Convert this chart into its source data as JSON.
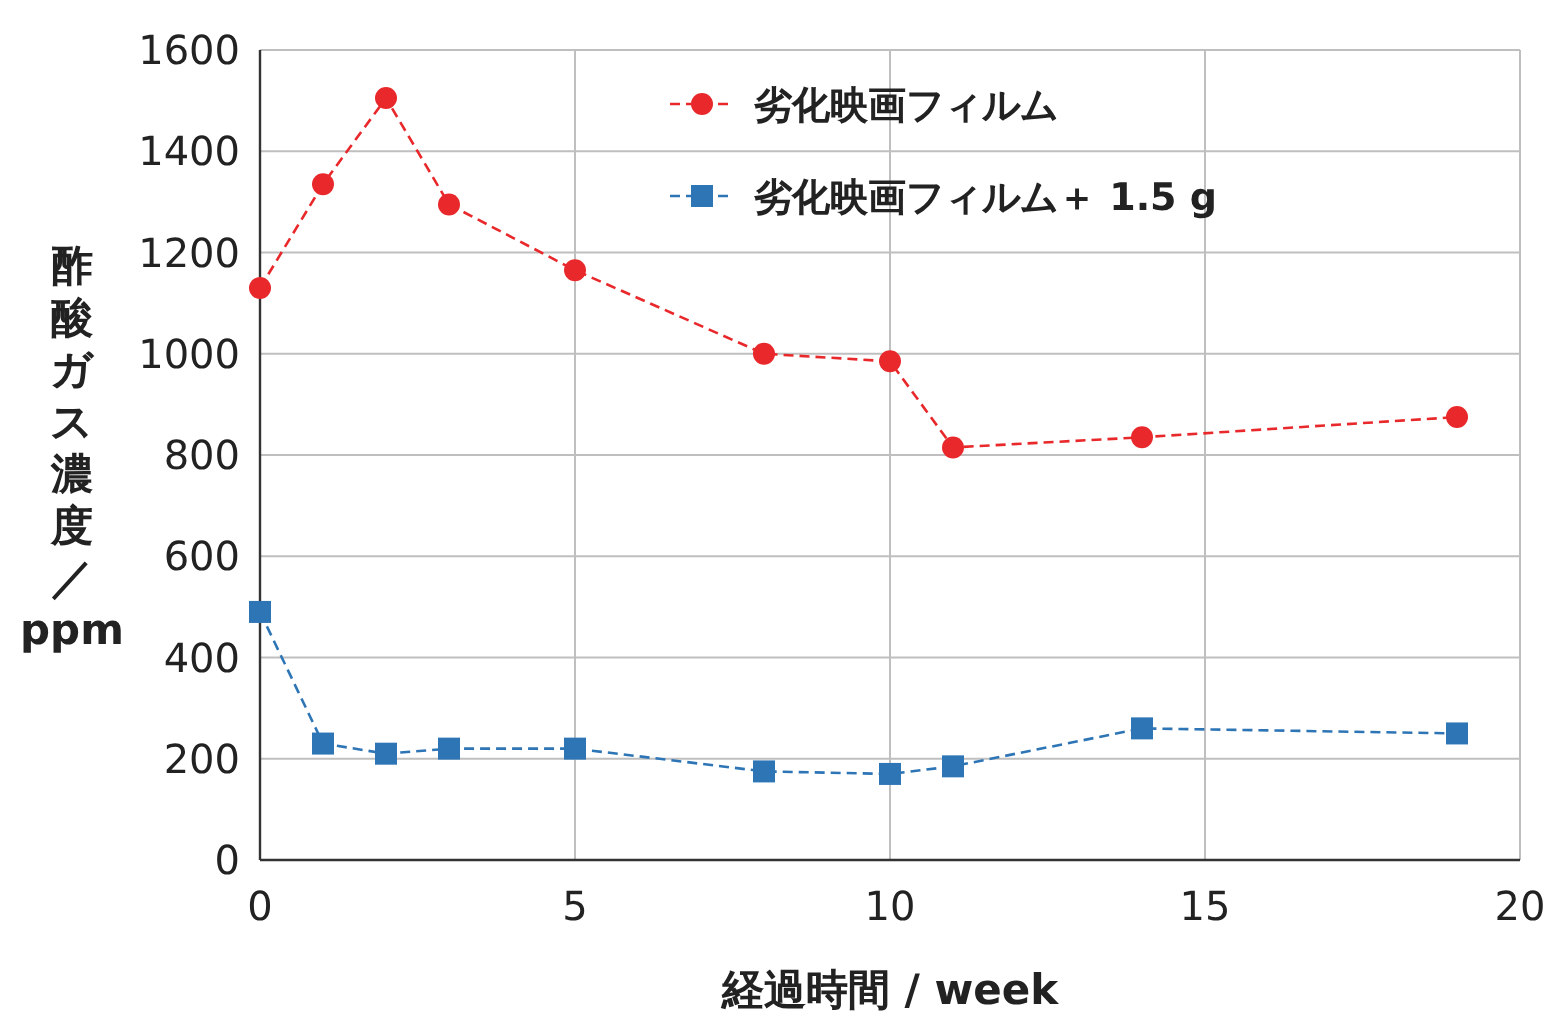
{
  "chart_data": {
    "type": "line",
    "xlabel": "経過時間 / week",
    "ylabel": "酢酸ガス濃度／ppm",
    "xlim": [
      0,
      20
    ],
    "xticks": [
      0,
      5,
      10,
      15,
      20
    ],
    "ylim": [
      0,
      1600
    ],
    "yticks": [
      0,
      200,
      400,
      600,
      800,
      1000,
      1200,
      1400,
      1600
    ],
    "grid": true,
    "legend": "top right",
    "series": [
      {
        "name": "劣化映画フィルム",
        "color": "#e8282b",
        "marker": "circle",
        "line_style": "dashed",
        "x": [
          0,
          1,
          2,
          3,
          5,
          8,
          10,
          11,
          14,
          19
        ],
        "values": [
          1130,
          1335,
          1505,
          1295,
          1165,
          1000,
          985,
          815,
          835,
          875
        ]
      },
      {
        "name": "劣化映画フィルム＋ 1.5 g",
        "color": "#2e75b6",
        "marker": "square",
        "line_style": "dashed",
        "x": [
          0,
          1,
          2,
          3,
          5,
          8,
          10,
          11,
          14,
          19
        ],
        "values": [
          490,
          230,
          210,
          220,
          220,
          175,
          170,
          185,
          260,
          250
        ]
      }
    ]
  }
}
